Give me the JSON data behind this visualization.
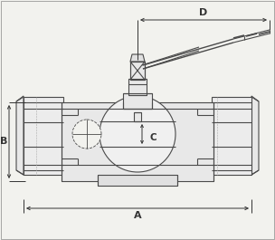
{
  "bg_color": "#f2f2ee",
  "lc": "#4a4a4a",
  "dc": "#333333",
  "label_A": "A",
  "label_B": "B",
  "label_C": "C",
  "label_D": "D",
  "fig_width": 3.04,
  "fig_height": 2.65,
  "dpi": 100,
  "lw_main": 0.8,
  "lw_dim": 0.7,
  "lw_thin": 0.5
}
